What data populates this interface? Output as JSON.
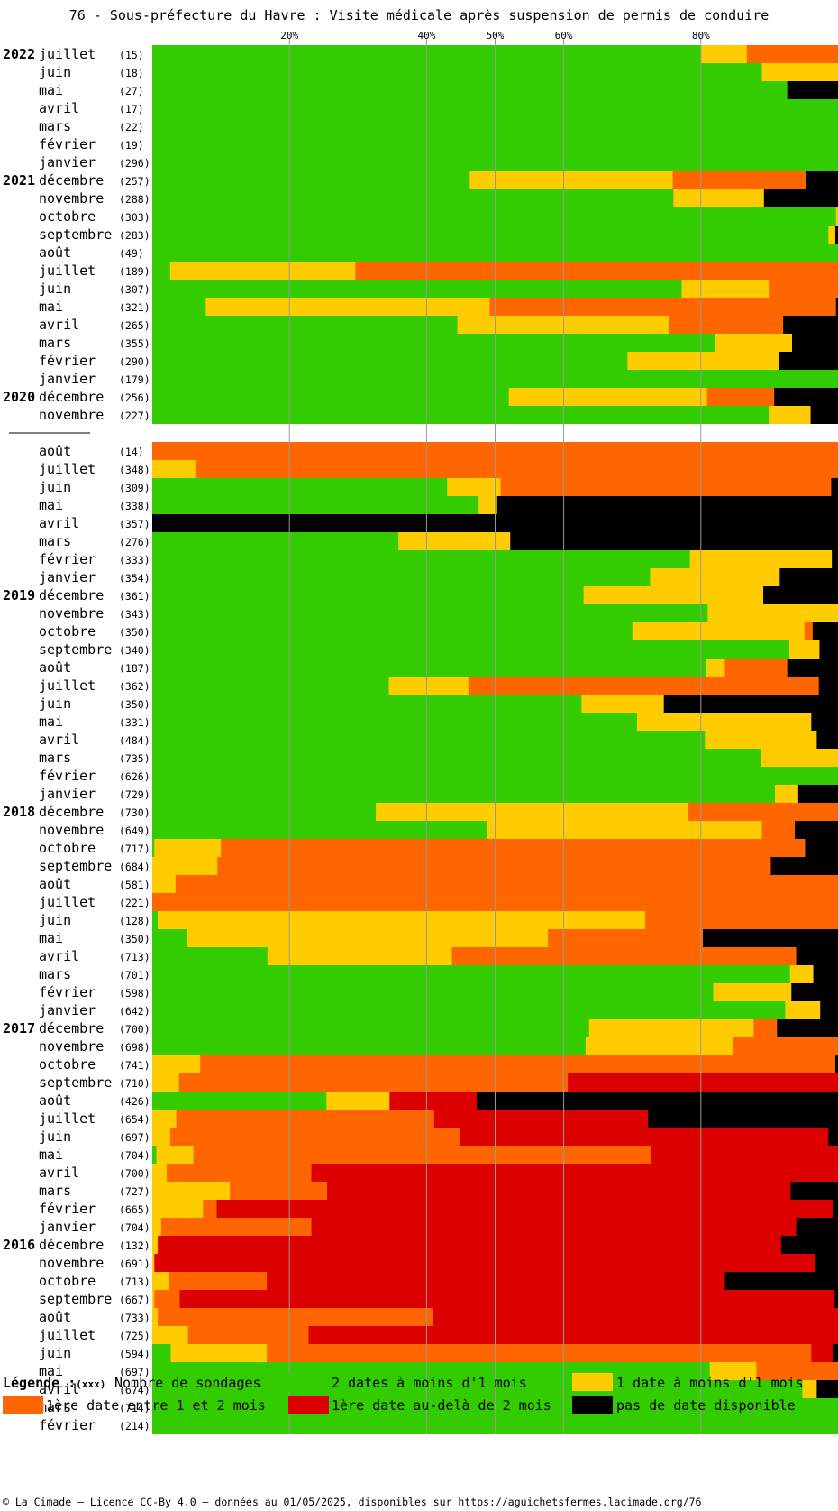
{
  "title": "76 - Sous-préfecture du Havre : Visite médicale après suspension de permis de conduire",
  "footer": "© La Cimade — Licence CC-By 4.0 — données au 01/05/2025, disponibles sur https://aguichetsfermes.lacimade.org/76",
  "legend": {
    "label": "Légende :",
    "xxx": "(xxx)",
    "count_label": "Nombre de sondages",
    "items": [
      {
        "key": "g",
        "label": "2 dates à moins d'1 mois",
        "color": "#33cc00"
      },
      {
        "key": "y",
        "label": "1 date à moins d'1 mois",
        "color": "#ffcc00"
      },
      {
        "key": "o",
        "label": "1ère date entre 1 et 2 mois",
        "color": "#ff6600"
      },
      {
        "key": "r",
        "label": "1ère date au-delà de 2 mois",
        "color": "#dd0000"
      },
      {
        "key": "b",
        "label": "pas de date disponible",
        "color": "#000000"
      }
    ]
  },
  "chart_data": {
    "type": "bar",
    "orientation": "horizontal",
    "stacked": true,
    "unit": "percent of probes",
    "xlim": [
      0,
      100
    ],
    "x_ticks": [
      "20%",
      "40%",
      "50%",
      "60%",
      "80%"
    ],
    "x_tick_values": [
      20,
      40,
      50,
      60,
      80
    ],
    "series_order": [
      "g",
      "y",
      "o",
      "r",
      "b"
    ],
    "rows": [
      {
        "year": "2022",
        "month": "juillet",
        "count": "(15)",
        "g": 80.0,
        "y": 6.7,
        "o": 13.3,
        "r": 0,
        "b": 0
      },
      {
        "year": "",
        "month": "juin",
        "count": "(18)",
        "g": 88.9,
        "y": 11.1,
        "o": 0,
        "r": 0,
        "b": 0
      },
      {
        "year": "",
        "month": "mai",
        "count": "(27)",
        "g": 92.6,
        "y": 0,
        "o": 0,
        "r": 0,
        "b": 7.4
      },
      {
        "year": "",
        "month": "avril",
        "count": "(17)",
        "g": 100,
        "y": 0,
        "o": 0,
        "r": 0,
        "b": 0
      },
      {
        "year": "",
        "month": "mars",
        "count": "(22)",
        "g": 100,
        "y": 0,
        "o": 0,
        "r": 0,
        "b": 0
      },
      {
        "year": "",
        "month": "février",
        "count": "(19)",
        "g": 100,
        "y": 0,
        "o": 0,
        "r": 0,
        "b": 0
      },
      {
        "year": "",
        "month": "janvier",
        "count": "(296)",
        "g": 100,
        "y": 0,
        "o": 0,
        "r": 0,
        "b": 0
      },
      {
        "year": "2021",
        "month": "décembre",
        "count": "(257)",
        "g": 46.3,
        "y": 29.6,
        "o": 19.5,
        "r": 0,
        "b": 4.6
      },
      {
        "year": "",
        "month": "novembre",
        "count": "(288)",
        "g": 76.0,
        "y": 13.2,
        "o": 0,
        "r": 0,
        "b": 10.8
      },
      {
        "year": "",
        "month": "octobre",
        "count": "(303)",
        "g": 99.7,
        "y": 0.3,
        "o": 0,
        "r": 0,
        "b": 0
      },
      {
        "year": "",
        "month": "septembre",
        "count": "(283)",
        "g": 98.6,
        "y": 1.0,
        "o": 0,
        "r": 0,
        "b": 0.4
      },
      {
        "year": "",
        "month": "août",
        "count": "(49)",
        "g": 100,
        "y": 0,
        "o": 0,
        "r": 0,
        "b": 0
      },
      {
        "year": "",
        "month": "juillet",
        "count": "(189)",
        "g": 2.6,
        "y": 27.0,
        "o": 70.4,
        "r": 0,
        "b": 0
      },
      {
        "year": "",
        "month": "juin",
        "count": "(307)",
        "g": 77.2,
        "y": 12.7,
        "o": 10.1,
        "r": 0,
        "b": 0
      },
      {
        "year": "",
        "month": "mai",
        "count": "(321)",
        "g": 7.8,
        "y": 41.4,
        "o": 50.5,
        "r": 0,
        "b": 0.3
      },
      {
        "year": "",
        "month": "avril",
        "count": "(265)",
        "g": 44.5,
        "y": 30.9,
        "o": 16.6,
        "r": 0,
        "b": 8.0
      },
      {
        "year": "",
        "month": "mars",
        "count": "(355)",
        "g": 82.0,
        "y": 11.3,
        "o": 0,
        "r": 0,
        "b": 6.7
      },
      {
        "year": "",
        "month": "février",
        "count": "(290)",
        "g": 69.3,
        "y": 22.1,
        "o": 0,
        "r": 0,
        "b": 8.6
      },
      {
        "year": "",
        "month": "janvier",
        "count": "(179)",
        "g": 100,
        "y": 0,
        "o": 0,
        "r": 0,
        "b": 0
      },
      {
        "year": "2020",
        "month": "décembre",
        "count": "(256)",
        "g": 52.0,
        "y": 28.9,
        "o": 9.8,
        "r": 0,
        "b": 9.3
      },
      {
        "year": "",
        "month": "novembre",
        "count": "(227)",
        "g": 89.9,
        "y": 6.1,
        "o": 0,
        "r": 0,
        "b": 4.0
      },
      {
        "gap": true
      },
      {
        "year": "",
        "month": "août",
        "count": "(14)",
        "g": 0,
        "y": 0,
        "o": 100,
        "r": 0,
        "b": 0
      },
      {
        "year": "",
        "month": "juillet",
        "count": "(348)",
        "g": 0,
        "y": 6.3,
        "o": 93.7,
        "r": 0,
        "b": 0
      },
      {
        "year": "",
        "month": "juin",
        "count": "(309)",
        "g": 43.0,
        "y": 7.8,
        "o": 48.2,
        "r": 0,
        "b": 1.0
      },
      {
        "year": "",
        "month": "mai",
        "count": "(338)",
        "g": 47.6,
        "y": 2.7,
        "o": 0,
        "r": 0,
        "b": 49.7
      },
      {
        "year": "",
        "month": "avril",
        "count": "(357)",
        "g": 0,
        "y": 0,
        "o": 0,
        "r": 0,
        "b": 100
      },
      {
        "year": "",
        "month": "mars",
        "count": "(276)",
        "g": 35.9,
        "y": 16.3,
        "o": 0,
        "r": 0,
        "b": 47.8
      },
      {
        "year": "",
        "month": "février",
        "count": "(333)",
        "g": 78.4,
        "y": 20.7,
        "o": 0,
        "r": 0,
        "b": 0.9
      },
      {
        "year": "",
        "month": "janvier",
        "count": "(354)",
        "g": 72.6,
        "y": 18.9,
        "o": 0,
        "r": 0,
        "b": 8.5
      },
      {
        "year": "2019",
        "month": "décembre",
        "count": "(361)",
        "g": 62.9,
        "y": 26.2,
        "o": 0,
        "r": 0,
        "b": 10.9
      },
      {
        "year": "",
        "month": "novembre",
        "count": "(343)",
        "g": 81.0,
        "y": 19.0,
        "o": 0,
        "r": 0,
        "b": 0
      },
      {
        "year": "",
        "month": "octobre",
        "count": "(350)",
        "g": 70.0,
        "y": 25.1,
        "o": 1.2,
        "r": 0,
        "b": 3.7
      },
      {
        "year": "",
        "month": "septembre",
        "count": "(340)",
        "g": 92.9,
        "y": 4.4,
        "o": 0,
        "r": 0,
        "b": 2.7
      },
      {
        "year": "",
        "month": "août",
        "count": "(187)",
        "g": 80.8,
        "y": 2.7,
        "o": 9.1,
        "r": 0,
        "b": 7.4
      },
      {
        "year": "",
        "month": "juillet",
        "count": "(362)",
        "g": 34.5,
        "y": 11.6,
        "o": 51.1,
        "r": 0,
        "b": 2.8
      },
      {
        "year": "",
        "month": "juin",
        "count": "(350)",
        "g": 62.6,
        "y": 12.0,
        "o": 0,
        "r": 0,
        "b": 25.4
      },
      {
        "year": "",
        "month": "mai",
        "count": "(331)",
        "g": 70.7,
        "y": 25.4,
        "o": 0,
        "r": 0,
        "b": 3.9
      },
      {
        "year": "",
        "month": "avril",
        "count": "(484)",
        "g": 80.6,
        "y": 16.3,
        "o": 0,
        "r": 0,
        "b": 3.1
      },
      {
        "year": "",
        "month": "mars",
        "count": "(735)",
        "g": 88.7,
        "y": 11.3,
        "o": 0,
        "r": 0,
        "b": 0
      },
      {
        "year": "",
        "month": "février",
        "count": "(626)",
        "g": 100,
        "y": 0,
        "o": 0,
        "r": 0,
        "b": 0
      },
      {
        "year": "",
        "month": "janvier",
        "count": "(729)",
        "g": 90.8,
        "y": 3.4,
        "o": 0,
        "r": 0,
        "b": 5.8
      },
      {
        "year": "2018",
        "month": "décembre",
        "count": "(730)",
        "g": 32.6,
        "y": 45.6,
        "o": 21.8,
        "r": 0,
        "b": 0
      },
      {
        "year": "",
        "month": "novembre",
        "count": "(649)",
        "g": 48.8,
        "y": 40.1,
        "o": 4.8,
        "r": 0,
        "b": 6.3
      },
      {
        "year": "",
        "month": "octobre",
        "count": "(717)",
        "g": 0.3,
        "y": 9.7,
        "o": 85.2,
        "r": 0,
        "b": 4.8
      },
      {
        "year": "",
        "month": "septembre",
        "count": "(684)",
        "g": 0,
        "y": 9.5,
        "o": 80.7,
        "r": 0,
        "b": 9.8
      },
      {
        "year": "",
        "month": "août",
        "count": "(581)",
        "g": 0,
        "y": 3.4,
        "o": 96.6,
        "r": 0,
        "b": 0
      },
      {
        "year": "",
        "month": "juillet",
        "count": "(221)",
        "g": 0,
        "y": 0,
        "o": 100,
        "r": 0,
        "b": 0
      },
      {
        "year": "",
        "month": "juin",
        "count": "(128)",
        "g": 0.8,
        "y": 71.1,
        "o": 28.1,
        "r": 0,
        "b": 0
      },
      {
        "year": "",
        "month": "mai",
        "count": "(350)",
        "g": 5.1,
        "y": 52.6,
        "o": 22.6,
        "r": 0,
        "b": 19.7
      },
      {
        "year": "",
        "month": "avril",
        "count": "(713)",
        "g": 16.8,
        "y": 26.9,
        "o": 50.2,
        "r": 0,
        "b": 6.1
      },
      {
        "year": "",
        "month": "mars",
        "count": "(701)",
        "g": 93.0,
        "y": 3.4,
        "o": 0,
        "r": 0,
        "b": 3.6
      },
      {
        "year": "",
        "month": "février",
        "count": "(598)",
        "g": 81.8,
        "y": 11.4,
        "o": 0,
        "r": 0,
        "b": 6.8
      },
      {
        "year": "",
        "month": "janvier",
        "count": "(642)",
        "g": 92.3,
        "y": 5.1,
        "o": 0,
        "r": 0,
        "b": 2.6
      },
      {
        "year": "2017",
        "month": "décembre",
        "count": "(700)",
        "g": 63.7,
        "y": 24.0,
        "o": 3.4,
        "r": 0,
        "b": 8.9
      },
      {
        "year": "",
        "month": "novembre",
        "count": "(698)",
        "g": 63.2,
        "y": 21.5,
        "o": 15.3,
        "r": 0,
        "b": 0
      },
      {
        "year": "",
        "month": "octobre",
        "count": "(741)",
        "g": 0,
        "y": 7.0,
        "o": 92.6,
        "r": 0,
        "b": 0.4
      },
      {
        "year": "",
        "month": "septembre",
        "count": "(710)",
        "g": 0,
        "y": 3.9,
        "o": 56.7,
        "r": 39.4,
        "b": 0
      },
      {
        "year": "",
        "month": "août",
        "count": "(426)",
        "g": 25.4,
        "y": 9.2,
        "o": 0,
        "r": 12.7,
        "b": 52.7
      },
      {
        "year": "",
        "month": "juillet",
        "count": "(654)",
        "g": 0,
        "y": 3.5,
        "o": 37.6,
        "r": 31.2,
        "b": 27.7
      },
      {
        "year": "",
        "month": "juin",
        "count": "(697)",
        "g": 0,
        "y": 2.6,
        "o": 42.2,
        "r": 53.8,
        "b": 1.4
      },
      {
        "year": "",
        "month": "mai",
        "count": "(704)",
        "g": 0.6,
        "y": 5.4,
        "o": 66.8,
        "r": 27.2,
        "b": 0
      },
      {
        "year": "",
        "month": "avril",
        "count": "(700)",
        "g": 0,
        "y": 2.1,
        "o": 21.1,
        "r": 76.8,
        "b": 0
      },
      {
        "year": "",
        "month": "mars",
        "count": "(727)",
        "g": 0,
        "y": 11.3,
        "o": 14.2,
        "r": 67.6,
        "b": 6.9
      },
      {
        "year": "",
        "month": "février",
        "count": "(665)",
        "g": 0,
        "y": 7.4,
        "o": 2.0,
        "r": 89.8,
        "b": 0.8
      },
      {
        "year": "",
        "month": "janvier",
        "count": "(704)",
        "g": 0,
        "y": 1.3,
        "o": 21.9,
        "r": 70.7,
        "b": 6.1
      },
      {
        "year": "2016",
        "month": "décembre",
        "count": "(132)",
        "g": 0,
        "y": 0.8,
        "o": 0,
        "r": 90.9,
        "b": 8.3
      },
      {
        "year": "",
        "month": "novembre",
        "count": "(691)",
        "g": 0,
        "y": 0.3,
        "o": 0,
        "r": 96.3,
        "b": 3.4
      },
      {
        "year": "",
        "month": "octobre",
        "count": "(713)",
        "g": 0,
        "y": 2.4,
        "o": 14.3,
        "r": 66.8,
        "b": 16.5
      },
      {
        "year": "",
        "month": "septembre",
        "count": "(667)",
        "g": 0,
        "y": 0.3,
        "o": 3.7,
        "r": 95.5,
        "b": 0.5
      },
      {
        "year": "",
        "month": "août",
        "count": "(733)",
        "g": 0,
        "y": 0.8,
        "o": 40.2,
        "r": 59.0,
        "b": 0
      },
      {
        "year": "",
        "month": "juillet",
        "count": "(725)",
        "g": 0,
        "y": 5.2,
        "o": 17.6,
        "r": 77.2,
        "b": 0
      },
      {
        "year": "",
        "month": "juin",
        "count": "(594)",
        "g": 2.7,
        "y": 14.0,
        "o": 79.4,
        "r": 3.1,
        "b": 0.8
      },
      {
        "year": "",
        "month": "mai",
        "count": "(697)",
        "g": 81.3,
        "y": 6.8,
        "o": 11.9,
        "r": 0,
        "b": 0
      },
      {
        "year": "",
        "month": "avril",
        "count": "(674)",
        "g": 94.8,
        "y": 2.1,
        "o": 0,
        "r": 0,
        "b": 3.1
      },
      {
        "year": "",
        "month": "mars",
        "count": "(714)",
        "g": 100,
        "y": 0,
        "o": 0,
        "r": 0,
        "b": 0
      },
      {
        "year": "",
        "month": "février",
        "count": "(214)",
        "g": 100,
        "y": 0,
        "o": 0,
        "r": 0,
        "b": 0
      }
    ]
  }
}
